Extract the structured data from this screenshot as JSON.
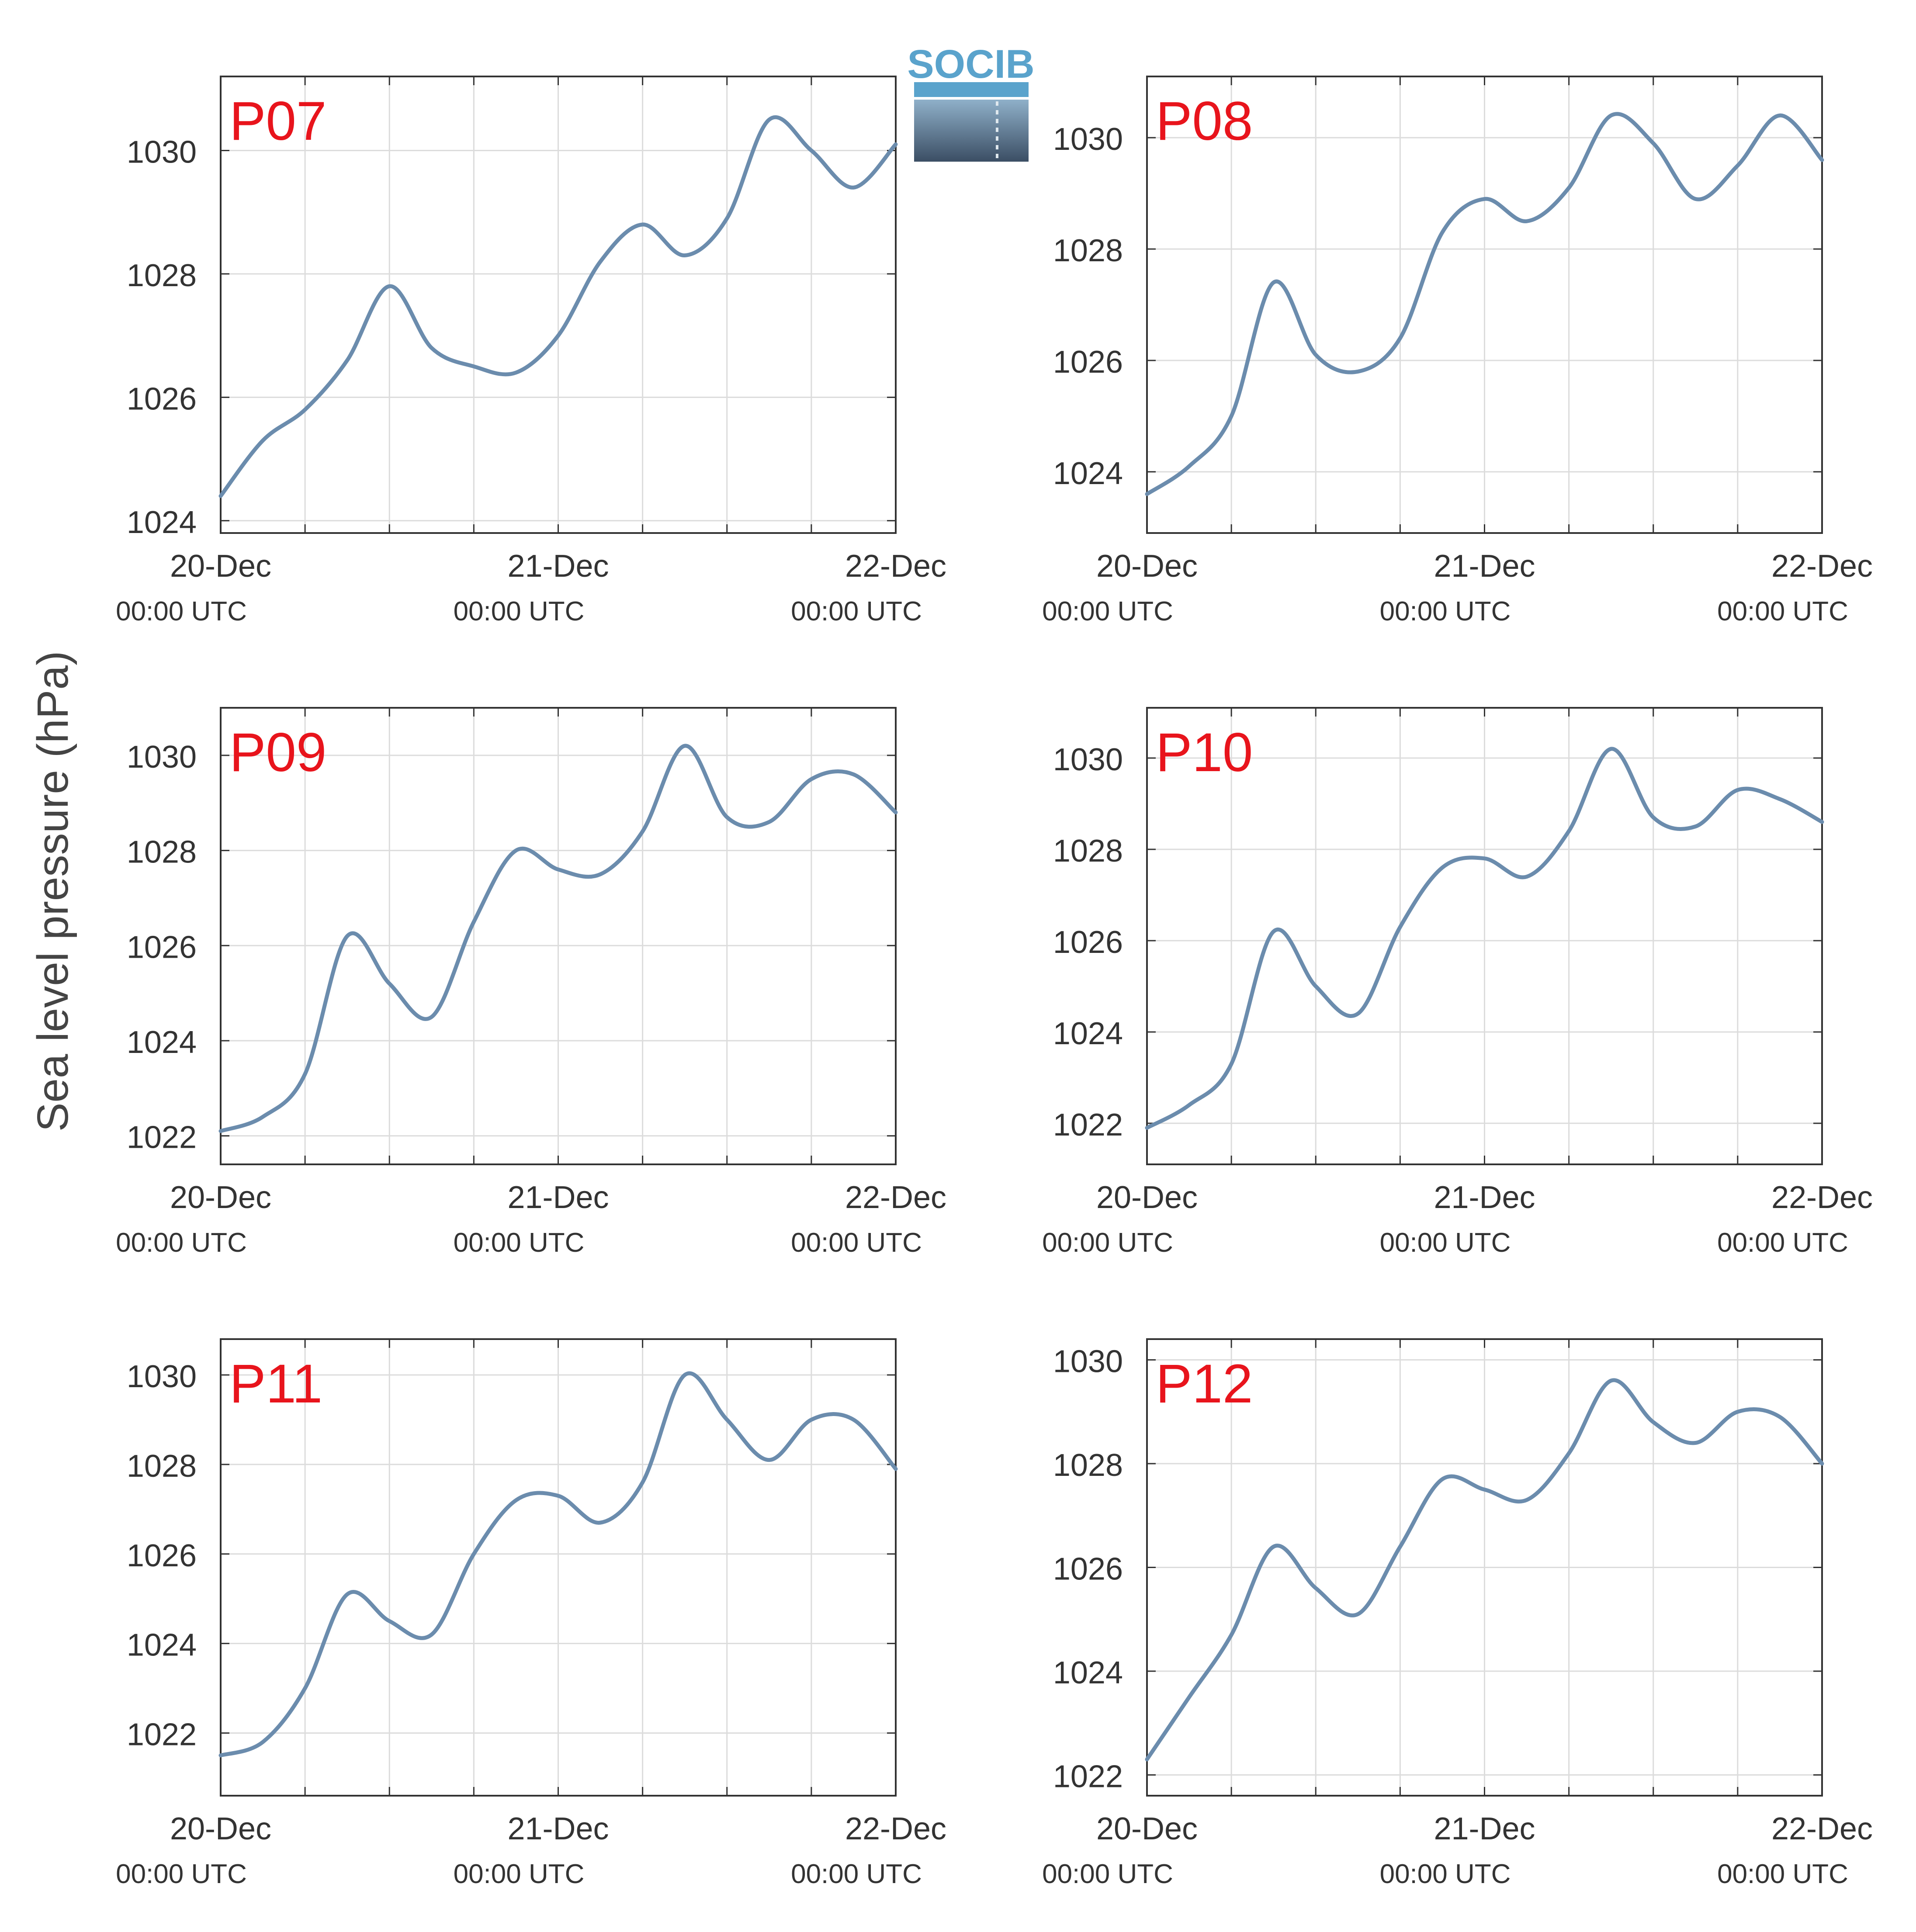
{
  "figure": {
    "ylabel": "Sea level pressure (hPa)",
    "logo_text": "SOCIB",
    "series_color": "#6b8cad",
    "station_label_color": "#e8141c",
    "x_tick_labels": [
      {
        "date": "20-Dec",
        "time": "00:00 UTC"
      },
      {
        "date": "21-Dec",
        "time": "00:00 UTC"
      },
      {
        "date": "22-Dec",
        "time": "00:00 UTC"
      }
    ]
  },
  "chart_data": [
    {
      "type": "line",
      "station": "P07",
      "xlim": [
        "20-Dec 00:00",
        "22-Dec 00:00"
      ],
      "ylim": [
        1023.8,
        1031.2
      ],
      "yticks": [
        1024,
        1026,
        1028,
        1030
      ],
      "grid": true,
      "x": [
        "20-Dec 00:00",
        "20-Dec 03:00",
        "20-Dec 06:00",
        "20-Dec 09:00",
        "20-Dec 12:00",
        "20-Dec 15:00",
        "20-Dec 18:00",
        "20-Dec 21:00",
        "21-Dec 00:00",
        "21-Dec 03:00",
        "21-Dec 06:00",
        "21-Dec 09:00",
        "21-Dec 12:00",
        "21-Dec 15:00",
        "21-Dec 18:00",
        "21-Dec 21:00",
        "22-Dec 00:00"
      ],
      "y": [
        1024.4,
        1025.3,
        1025.8,
        1026.6,
        1027.8,
        1026.8,
        1026.5,
        1026.4,
        1027.0,
        1028.2,
        1028.8,
        1028.3,
        1028.9,
        1030.5,
        1030.0,
        1029.4,
        1030.1
      ]
    },
    {
      "type": "line",
      "station": "P08",
      "xlim": [
        "20-Dec 00:00",
        "22-Dec 00:00"
      ],
      "ylim": [
        1022.9,
        1031.1
      ],
      "yticks": [
        1024,
        1026,
        1028,
        1030
      ],
      "grid": true,
      "x": [
        "20-Dec 00:00",
        "20-Dec 03:00",
        "20-Dec 06:00",
        "20-Dec 09:00",
        "20-Dec 12:00",
        "20-Dec 15:00",
        "20-Dec 18:00",
        "20-Dec 21:00",
        "21-Dec 00:00",
        "21-Dec 03:00",
        "21-Dec 06:00",
        "21-Dec 09:00",
        "21-Dec 12:00",
        "21-Dec 15:00",
        "21-Dec 18:00",
        "21-Dec 21:00",
        "22-Dec 00:00"
      ],
      "y": [
        1023.6,
        1024.1,
        1025.0,
        1027.4,
        1026.1,
        1025.8,
        1026.4,
        1028.3,
        1028.9,
        1028.5,
        1029.1,
        1030.4,
        1029.9,
        1028.9,
        1029.5,
        1030.4,
        1029.6
      ]
    },
    {
      "type": "line",
      "station": "P09",
      "xlim": [
        "20-Dec 00:00",
        "22-Dec 00:00"
      ],
      "ylim": [
        1021.4,
        1031.0
      ],
      "yticks": [
        1022,
        1024,
        1026,
        1028,
        1030
      ],
      "grid": true,
      "x": [
        "20-Dec 00:00",
        "20-Dec 03:00",
        "20-Dec 06:00",
        "20-Dec 09:00",
        "20-Dec 12:00",
        "20-Dec 15:00",
        "20-Dec 18:00",
        "20-Dec 21:00",
        "21-Dec 00:00",
        "21-Dec 03:00",
        "21-Dec 06:00",
        "21-Dec 09:00",
        "21-Dec 12:00",
        "21-Dec 15:00",
        "21-Dec 18:00",
        "21-Dec 21:00",
        "22-Dec 00:00"
      ],
      "y": [
        1022.1,
        1022.4,
        1023.3,
        1026.2,
        1025.2,
        1024.5,
        1026.5,
        1028.0,
        1027.6,
        1027.5,
        1028.4,
        1030.2,
        1028.7,
        1028.6,
        1029.5,
        1029.6,
        1028.8
      ]
    },
    {
      "type": "line",
      "station": "P10",
      "xlim": [
        "20-Dec 00:00",
        "22-Dec 00:00"
      ],
      "ylim": [
        1021.1,
        1031.1
      ],
      "yticks": [
        1022,
        1024,
        1026,
        1028,
        1030
      ],
      "grid": true,
      "x": [
        "20-Dec 00:00",
        "20-Dec 03:00",
        "20-Dec 06:00",
        "20-Dec 09:00",
        "20-Dec 12:00",
        "20-Dec 15:00",
        "20-Dec 18:00",
        "20-Dec 21:00",
        "21-Dec 00:00",
        "21-Dec 03:00",
        "21-Dec 06:00",
        "21-Dec 09:00",
        "21-Dec 12:00",
        "21-Dec 15:00",
        "21-Dec 18:00",
        "21-Dec 21:00",
        "22-Dec 00:00"
      ],
      "y": [
        1021.9,
        1022.4,
        1023.3,
        1026.2,
        1025.0,
        1024.4,
        1026.3,
        1027.6,
        1027.8,
        1027.4,
        1028.4,
        1030.2,
        1028.7,
        1028.5,
        1029.3,
        1029.1,
        1028.6
      ]
    },
    {
      "type": "line",
      "station": "P11",
      "xlim": [
        "20-Dec 00:00",
        "22-Dec 00:00"
      ],
      "ylim": [
        1020.6,
        1030.8
      ],
      "yticks": [
        1022,
        1024,
        1026,
        1028,
        1030
      ],
      "grid": true,
      "x": [
        "20-Dec 00:00",
        "20-Dec 03:00",
        "20-Dec 06:00",
        "20-Dec 09:00",
        "20-Dec 12:00",
        "20-Dec 15:00",
        "20-Dec 18:00",
        "20-Dec 21:00",
        "21-Dec 00:00",
        "21-Dec 03:00",
        "21-Dec 06:00",
        "21-Dec 09:00",
        "21-Dec 12:00",
        "21-Dec 15:00",
        "21-Dec 18:00",
        "21-Dec 21:00",
        "22-Dec 00:00"
      ],
      "y": [
        1021.5,
        1021.8,
        1023.0,
        1025.1,
        1024.5,
        1024.2,
        1026.0,
        1027.2,
        1027.3,
        1026.7,
        1027.6,
        1030.0,
        1029.0,
        1028.1,
        1029.0,
        1029.0,
        1027.9
      ]
    },
    {
      "type": "line",
      "station": "P12",
      "xlim": [
        "20-Dec 00:00",
        "22-Dec 00:00"
      ],
      "ylim": [
        1021.6,
        1030.4
      ],
      "yticks": [
        1022,
        1024,
        1026,
        1028,
        1030
      ],
      "grid": true,
      "x": [
        "20-Dec 00:00",
        "20-Dec 03:00",
        "20-Dec 06:00",
        "20-Dec 09:00",
        "20-Dec 12:00",
        "20-Dec 15:00",
        "20-Dec 18:00",
        "20-Dec 21:00",
        "21-Dec 00:00",
        "21-Dec 03:00",
        "21-Dec 06:00",
        "21-Dec 09:00",
        "21-Dec 12:00",
        "21-Dec 15:00",
        "21-Dec 18:00",
        "21-Dec 21:00",
        "22-Dec 00:00"
      ],
      "y": [
        1022.3,
        1023.5,
        1024.7,
        1026.4,
        1025.6,
        1025.1,
        1026.4,
        1027.7,
        1027.5,
        1027.3,
        1028.2,
        1029.6,
        1028.8,
        1028.4,
        1029.0,
        1028.9,
        1028.0
      ]
    }
  ]
}
